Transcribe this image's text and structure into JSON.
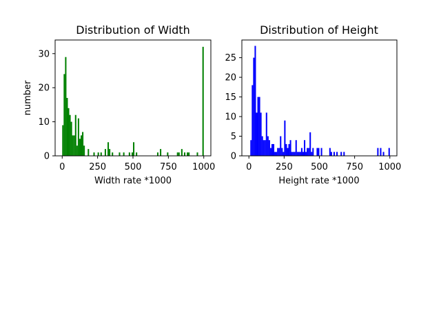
{
  "chart_data": [
    {
      "type": "bar",
      "title": "Distribution of Width",
      "xlabel": "Width rate *1000",
      "ylabel": "number",
      "xlim": [
        -50,
        1050
      ],
      "ylim": [
        0,
        34
      ],
      "xticks": [
        "0",
        "250",
        "500",
        "750",
        "1000"
      ],
      "xtick_values": [
        0,
        250,
        500,
        750,
        1000
      ],
      "yticks": [
        "0",
        "10",
        "20",
        "30"
      ],
      "ytick_values": [
        0,
        10,
        20,
        30
      ],
      "bin_width": 10,
      "color": "#008000",
      "bins": [
        {
          "x": 0,
          "y": 9
        },
        {
          "x": 10,
          "y": 24
        },
        {
          "x": 20,
          "y": 29
        },
        {
          "x": 30,
          "y": 17
        },
        {
          "x": 40,
          "y": 14
        },
        {
          "x": 50,
          "y": 12
        },
        {
          "x": 60,
          "y": 10
        },
        {
          "x": 70,
          "y": 6
        },
        {
          "x": 80,
          "y": 6
        },
        {
          "x": 90,
          "y": 12
        },
        {
          "x": 100,
          "y": 3
        },
        {
          "x": 110,
          "y": 11
        },
        {
          "x": 120,
          "y": 5
        },
        {
          "x": 130,
          "y": 6
        },
        {
          "x": 140,
          "y": 7
        },
        {
          "x": 150,
          "y": 3
        },
        {
          "x": 180,
          "y": 2
        },
        {
          "x": 220,
          "y": 1
        },
        {
          "x": 250,
          "y": 1
        },
        {
          "x": 270,
          "y": 1
        },
        {
          "x": 300,
          "y": 2
        },
        {
          "x": 320,
          "y": 4
        },
        {
          "x": 330,
          "y": 2
        },
        {
          "x": 350,
          "y": 1
        },
        {
          "x": 400,
          "y": 1
        },
        {
          "x": 430,
          "y": 1
        },
        {
          "x": 470,
          "y": 1
        },
        {
          "x": 490,
          "y": 1
        },
        {
          "x": 500,
          "y": 4
        },
        {
          "x": 520,
          "y": 1
        },
        {
          "x": 670,
          "y": 1
        },
        {
          "x": 690,
          "y": 2
        },
        {
          "x": 740,
          "y": 1
        },
        {
          "x": 810,
          "y": 1
        },
        {
          "x": 820,
          "y": 1
        },
        {
          "x": 840,
          "y": 2
        },
        {
          "x": 860,
          "y": 1
        },
        {
          "x": 880,
          "y": 1
        },
        {
          "x": 890,
          "y": 1
        },
        {
          "x": 950,
          "y": 1
        },
        {
          "x": 990,
          "y": 32
        }
      ]
    },
    {
      "type": "bar",
      "title": "Distribution of Height",
      "xlabel": "Height rate *1000",
      "ylabel": "",
      "xlim": [
        -50,
        1050
      ],
      "ylim": [
        0,
        29.5
      ],
      "xticks": [
        "0",
        "250",
        "500",
        "750",
        "1000"
      ],
      "xtick_values": [
        0,
        250,
        500,
        750,
        1000
      ],
      "yticks": [
        "0",
        "5",
        "10",
        "15",
        "20",
        "25"
      ],
      "ytick_values": [
        0,
        5,
        10,
        15,
        20,
        25
      ],
      "bin_width": 10,
      "color": "#0000ff",
      "bins": [
        {
          "x": 10,
          "y": 4
        },
        {
          "x": 20,
          "y": 18
        },
        {
          "x": 30,
          "y": 25
        },
        {
          "x": 40,
          "y": 28
        },
        {
          "x": 50,
          "y": 11
        },
        {
          "x": 60,
          "y": 15
        },
        {
          "x": 70,
          "y": 15
        },
        {
          "x": 80,
          "y": 11
        },
        {
          "x": 90,
          "y": 5
        },
        {
          "x": 100,
          "y": 4
        },
        {
          "x": 110,
          "y": 4
        },
        {
          "x": 120,
          "y": 11
        },
        {
          "x": 130,
          "y": 5
        },
        {
          "x": 140,
          "y": 4
        },
        {
          "x": 150,
          "y": 2
        },
        {
          "x": 160,
          "y": 3
        },
        {
          "x": 170,
          "y": 3
        },
        {
          "x": 180,
          "y": 1
        },
        {
          "x": 190,
          "y": 1
        },
        {
          "x": 200,
          "y": 2
        },
        {
          "x": 210,
          "y": 2
        },
        {
          "x": 220,
          "y": 5
        },
        {
          "x": 230,
          "y": 2
        },
        {
          "x": 240,
          "y": 1
        },
        {
          "x": 250,
          "y": 9
        },
        {
          "x": 260,
          "y": 3
        },
        {
          "x": 270,
          "y": 2
        },
        {
          "x": 280,
          "y": 3
        },
        {
          "x": 290,
          "y": 4
        },
        {
          "x": 300,
          "y": 1
        },
        {
          "x": 310,
          "y": 1
        },
        {
          "x": 320,
          "y": 1
        },
        {
          "x": 330,
          "y": 4
        },
        {
          "x": 340,
          "y": 1
        },
        {
          "x": 350,
          "y": 1
        },
        {
          "x": 360,
          "y": 1
        },
        {
          "x": 370,
          "y": 2
        },
        {
          "x": 380,
          "y": 1
        },
        {
          "x": 390,
          "y": 4
        },
        {
          "x": 400,
          "y": 1
        },
        {
          "x": 410,
          "y": 2
        },
        {
          "x": 420,
          "y": 2
        },
        {
          "x": 430,
          "y": 6
        },
        {
          "x": 440,
          "y": 1
        },
        {
          "x": 450,
          "y": 2
        },
        {
          "x": 480,
          "y": 2
        },
        {
          "x": 490,
          "y": 2
        },
        {
          "x": 510,
          "y": 2
        },
        {
          "x": 570,
          "y": 2
        },
        {
          "x": 580,
          "y": 1
        },
        {
          "x": 600,
          "y": 1
        },
        {
          "x": 620,
          "y": 1
        },
        {
          "x": 650,
          "y": 1
        },
        {
          "x": 670,
          "y": 1
        },
        {
          "x": 910,
          "y": 2
        },
        {
          "x": 930,
          "y": 2
        },
        {
          "x": 950,
          "y": 1
        },
        {
          "x": 990,
          "y": 2
        }
      ]
    }
  ]
}
